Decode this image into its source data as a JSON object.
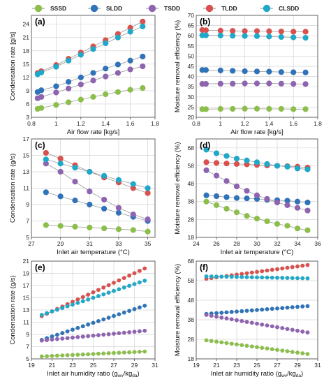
{
  "legend": [
    {
      "name": "SSSD",
      "color": "#8cbf4a"
    },
    {
      "name": "SLDD",
      "color": "#2f73b8"
    },
    {
      "name": "TSDD",
      "color": "#8e63b0"
    },
    {
      "name": "TLDD",
      "color": "#d9514e"
    },
    {
      "name": "CLSDD",
      "color": "#1fa9c9"
    }
  ],
  "chart_data": [
    {
      "panel": "(a)",
      "type": "line",
      "xlabel": "Air flow rate [kg/s]",
      "ylabel": "Condensation rate [g/s]",
      "xlim": [
        0.8,
        1.8
      ],
      "ylim": [
        3,
        26
      ],
      "xticks": [
        "0.8",
        "1",
        "1.2",
        "1.4",
        "1.6",
        "1.8"
      ],
      "yticks": [
        "3",
        "6",
        "9",
        "12",
        "15",
        "18",
        "21",
        "24"
      ],
      "x": [
        0.85,
        0.88,
        1.0,
        1.1,
        1.2,
        1.3,
        1.4,
        1.5,
        1.6,
        1.7
      ],
      "series": [
        {
          "name": "SSSD",
          "values": [
            4.9,
            5.1,
            5.8,
            6.4,
            7.0,
            7.6,
            8.2,
            8.7,
            9.2,
            9.6
          ]
        },
        {
          "name": "SLDD",
          "values": [
            8.7,
            9.1,
            10.0,
            11.0,
            12.0,
            13.0,
            14.0,
            14.9,
            15.8,
            16.7
          ]
        },
        {
          "name": "TSDD",
          "values": [
            7.3,
            7.6,
            8.6,
            9.5,
            10.4,
            11.3,
            12.2,
            13.0,
            13.8,
            14.5
          ]
        },
        {
          "name": "TLDD",
          "values": [
            13.0,
            13.4,
            14.8,
            16.2,
            17.6,
            19.0,
            20.4,
            21.8,
            23.2,
            24.6
          ]
        },
        {
          "name": "CLSDD",
          "values": [
            12.7,
            13.1,
            14.4,
            15.8,
            17.1,
            18.4,
            19.7,
            21.0,
            22.3,
            23.5
          ]
        }
      ]
    },
    {
      "panel": "(b)",
      "type": "line",
      "xlabel": "Air flow rate [kg/s]",
      "ylabel": "Moisture removal efficiency (%)",
      "xlim": [
        0.8,
        1.8
      ],
      "ylim": [
        20,
        70
      ],
      "xticks": [
        "0.8",
        "1",
        "1.2",
        "1.4",
        "1.6",
        "1.8"
      ],
      "yticks": [
        "20",
        "25",
        "30",
        "35",
        "40",
        "45",
        "50",
        "55",
        "60",
        "65",
        "70"
      ],
      "x": [
        0.85,
        0.88,
        1.0,
        1.1,
        1.2,
        1.3,
        1.4,
        1.5,
        1.6,
        1.7
      ],
      "series": [
        {
          "name": "SSSD",
          "values": [
            24.0,
            24.0,
            24.1,
            24.1,
            24.2,
            24.2,
            24.1,
            24.1,
            24.0,
            24.0
          ]
        },
        {
          "name": "SLDD",
          "values": [
            43.2,
            43.2,
            43.0,
            42.8,
            42.6,
            42.5,
            42.4,
            42.2,
            42.1,
            42.0
          ]
        },
        {
          "name": "TSDD",
          "values": [
            36.4,
            36.4,
            36.5,
            36.5,
            36.6,
            36.6,
            36.6,
            36.5,
            36.4,
            36.3
          ]
        },
        {
          "name": "TLDD",
          "values": [
            62.8,
            62.7,
            62.5,
            62.4,
            62.3,
            62.3,
            62.2,
            62.1,
            62.0,
            62.0
          ]
        },
        {
          "name": "CLSDD",
          "values": [
            60.2,
            60.2,
            60.1,
            60.0,
            59.9,
            59.8,
            59.6,
            59.4,
            59.2,
            59.0
          ]
        }
      ]
    },
    {
      "panel": "(c)",
      "type": "line",
      "xlabel": "Inlet air temperature (°C)",
      "ylabel": "Condensation rate (g/s)",
      "xlim": [
        27,
        35.5
      ],
      "ylim": [
        5,
        17
      ],
      "xticks": [
        "27",
        "29",
        "31",
        "33",
        "35"
      ],
      "yticks": [
        "5",
        "7",
        "9",
        "11",
        "13",
        "15",
        "17"
      ],
      "x": [
        28,
        29,
        30,
        31,
        32,
        33,
        34,
        35
      ],
      "series": [
        {
          "name": "SSSD",
          "values": [
            6.5,
            6.4,
            6.3,
            6.2,
            6.1,
            6.0,
            5.9,
            5.7
          ]
        },
        {
          "name": "SLDD",
          "values": [
            10.5,
            10.0,
            9.5,
            9.0,
            8.5,
            8.0,
            7.5,
            7.0
          ]
        },
        {
          "name": "TSDD",
          "values": [
            14.0,
            13.0,
            11.8,
            10.6,
            9.6,
            8.6,
            7.8,
            7.2
          ]
        },
        {
          "name": "TLDD",
          "values": [
            15.3,
            14.6,
            13.8,
            13.0,
            12.3,
            11.7,
            11.0,
            10.4
          ]
        },
        {
          "name": "CLSDD",
          "values": [
            14.5,
            14.0,
            13.5,
            13.0,
            12.5,
            12.0,
            11.5,
            11.0
          ]
        }
      ]
    },
    {
      "panel": "(d)",
      "type": "line",
      "xlabel": "Inlet air temperature (°C)",
      "ylabel": "Moisture removal efficiency (%)",
      "xlim": [
        24,
        36
      ],
      "ylim": [
        18,
        73
      ],
      "xticks": [
        "24",
        "26",
        "28",
        "30",
        "32",
        "34",
        "36"
      ],
      "yticks": [
        "18",
        "28",
        "38",
        "48",
        "58",
        "68"
      ],
      "x": [
        25,
        26,
        27,
        28,
        29,
        30,
        31,
        32,
        33,
        34,
        35
      ],
      "series": [
        {
          "name": "SSSD",
          "values": [
            38.0,
            36.0,
            34.0,
            32.0,
            30.0,
            28.5,
            27.0,
            25.5,
            24.5,
            23.0,
            22.0
          ]
        },
        {
          "name": "SLDD",
          "values": [
            41.5,
            41.0,
            40.5,
            40.0,
            39.8,
            39.5,
            39.0,
            38.8,
            38.5,
            38.0,
            37.5
          ]
        },
        {
          "name": "TSDD",
          "values": [
            55.5,
            52.5,
            49.5,
            46.5,
            44.0,
            41.5,
            39.5,
            37.5,
            36.0,
            34.5,
            33.0
          ]
        },
        {
          "name": "TLDD",
          "values": [
            60.0,
            59.6,
            59.3,
            59.0,
            58.8,
            58.5,
            58.2,
            58.0,
            57.8,
            57.5,
            57.0
          ]
        },
        {
          "name": "CLSDD",
          "values": [
            67.0,
            65.0,
            63.5,
            62.0,
            61.0,
            60.0,
            59.0,
            58.0,
            57.5,
            56.5,
            56.0
          ]
        }
      ]
    },
    {
      "panel": "(e)",
      "type": "line",
      "xlabel": "Inlet air humidity ratio (g",
      "xlabel_sub1": "wv",
      "xlabel_mid": "/kg",
      "xlabel_sub2": "da",
      "xlabel_end": ")",
      "ylabel": "Condensation rate (g/s)",
      "xlim": [
        19,
        31
      ],
      "ylim": [
        5,
        21
      ],
      "xticks": [
        "19",
        "21",
        "23",
        "25",
        "27",
        "29",
        "31"
      ],
      "yticks": [
        "5",
        "7",
        "9",
        "11",
        "13",
        "15",
        "17",
        "19",
        "21"
      ],
      "x": [
        20,
        20.5,
        21,
        21.5,
        22,
        22.5,
        23,
        23.5,
        24,
        24.5,
        25,
        25.5,
        26,
        26.5,
        27,
        27.5,
        28,
        28.5,
        29,
        29.5,
        30
      ],
      "series": [
        {
          "name": "SSSD",
          "values": [
            5.4,
            5.44,
            5.48,
            5.52,
            5.56,
            5.6,
            5.64,
            5.68,
            5.72,
            5.76,
            5.8,
            5.84,
            5.88,
            5.92,
            5.96,
            6.0,
            6.04,
            6.08,
            6.12,
            6.16,
            6.2
          ]
        },
        {
          "name": "SLDD",
          "values": [
            8.1,
            8.38,
            8.66,
            8.94,
            9.22,
            9.5,
            9.78,
            10.06,
            10.34,
            10.62,
            10.9,
            11.18,
            11.46,
            11.74,
            12.02,
            12.3,
            12.58,
            12.86,
            13.14,
            13.42,
            13.7
          ]
        },
        {
          "name": "TSDD",
          "values": [
            8.0,
            8.08,
            8.16,
            8.24,
            8.32,
            8.4,
            8.48,
            8.56,
            8.64,
            8.72,
            8.8,
            8.88,
            8.96,
            9.04,
            9.12,
            9.2,
            9.28,
            9.36,
            9.44,
            9.52,
            9.6
          ]
        },
        {
          "name": "TLDD",
          "values": [
            12.0,
            12.39,
            12.78,
            13.17,
            13.56,
            13.95,
            14.34,
            14.73,
            15.12,
            15.51,
            15.9,
            16.29,
            16.68,
            17.07,
            17.46,
            17.85,
            18.24,
            18.63,
            19.02,
            19.41,
            19.8
          ]
        },
        {
          "name": "CLSDD",
          "values": [
            12.2,
            12.48,
            12.76,
            13.04,
            13.32,
            13.6,
            13.88,
            14.16,
            14.44,
            14.72,
            15.0,
            15.28,
            15.56,
            15.84,
            16.12,
            16.4,
            16.68,
            16.96,
            17.24,
            17.52,
            17.8
          ]
        }
      ]
    },
    {
      "panel": "(f)",
      "type": "line",
      "xlabel": "Inlet air humidity ratio (g",
      "xlabel_sub1": "wv",
      "xlabel_mid": "/kg",
      "xlabel_sub2": "da",
      "xlabel_end": ")",
      "ylabel": "Moisture removal efficiency (%)",
      "xlim": [
        19,
        31
      ],
      "ylim": [
        18,
        68
      ],
      "xticks": [
        "19",
        "21",
        "23",
        "25",
        "27",
        "29",
        "31"
      ],
      "yticks": [
        "18",
        "28",
        "38",
        "48",
        "58",
        "68"
      ],
      "x": [
        20,
        20.5,
        21,
        21.5,
        22,
        22.5,
        23,
        23.5,
        24,
        24.5,
        25,
        25.5,
        26,
        26.5,
        27,
        27.5,
        28,
        28.5,
        29,
        29.5,
        30
      ],
      "series": [
        {
          "name": "SSSD",
          "values": [
            27.5,
            27.15,
            26.8,
            26.45,
            26.1,
            25.75,
            25.4,
            25.05,
            24.7,
            24.35,
            24.0,
            23.65,
            23.3,
            22.95,
            22.6,
            22.25,
            21.9,
            21.55,
            21.2,
            20.85,
            20.5
          ]
        },
        {
          "name": "SLDD",
          "values": [
            41.0,
            41.2,
            41.4,
            41.6,
            41.8,
            42.0,
            42.2,
            42.4,
            42.6,
            42.8,
            43.0,
            43.2,
            43.4,
            43.6,
            43.8,
            44.0,
            44.2,
            44.4,
            44.6,
            44.8,
            45.0
          ]
        },
        {
          "name": "TSDD",
          "values": [
            40.5,
            40.05,
            39.6,
            39.15,
            38.7,
            38.25,
            37.8,
            37.35,
            36.9,
            36.45,
            36.0,
            35.55,
            35.1,
            34.65,
            34.2,
            33.75,
            33.3,
            32.85,
            32.4,
            31.95,
            31.5
          ]
        },
        {
          "name": "TLDD",
          "values": [
            59.0,
            59.35,
            59.7,
            60.05,
            60.4,
            60.75,
            61.1,
            61.45,
            61.8,
            62.15,
            62.5,
            62.85,
            63.2,
            63.55,
            63.9,
            64.25,
            64.6,
            64.95,
            65.3,
            65.65,
            66.0
          ]
        },
        {
          "name": "CLSDD",
          "values": [
            60.2,
            60.15,
            60.1,
            60.05,
            60.0,
            59.95,
            59.9,
            59.85,
            59.8,
            59.75,
            59.7,
            59.65,
            59.6,
            59.55,
            59.5,
            59.45,
            59.4,
            59.35,
            59.3,
            59.25,
            59.2
          ]
        }
      ]
    }
  ]
}
